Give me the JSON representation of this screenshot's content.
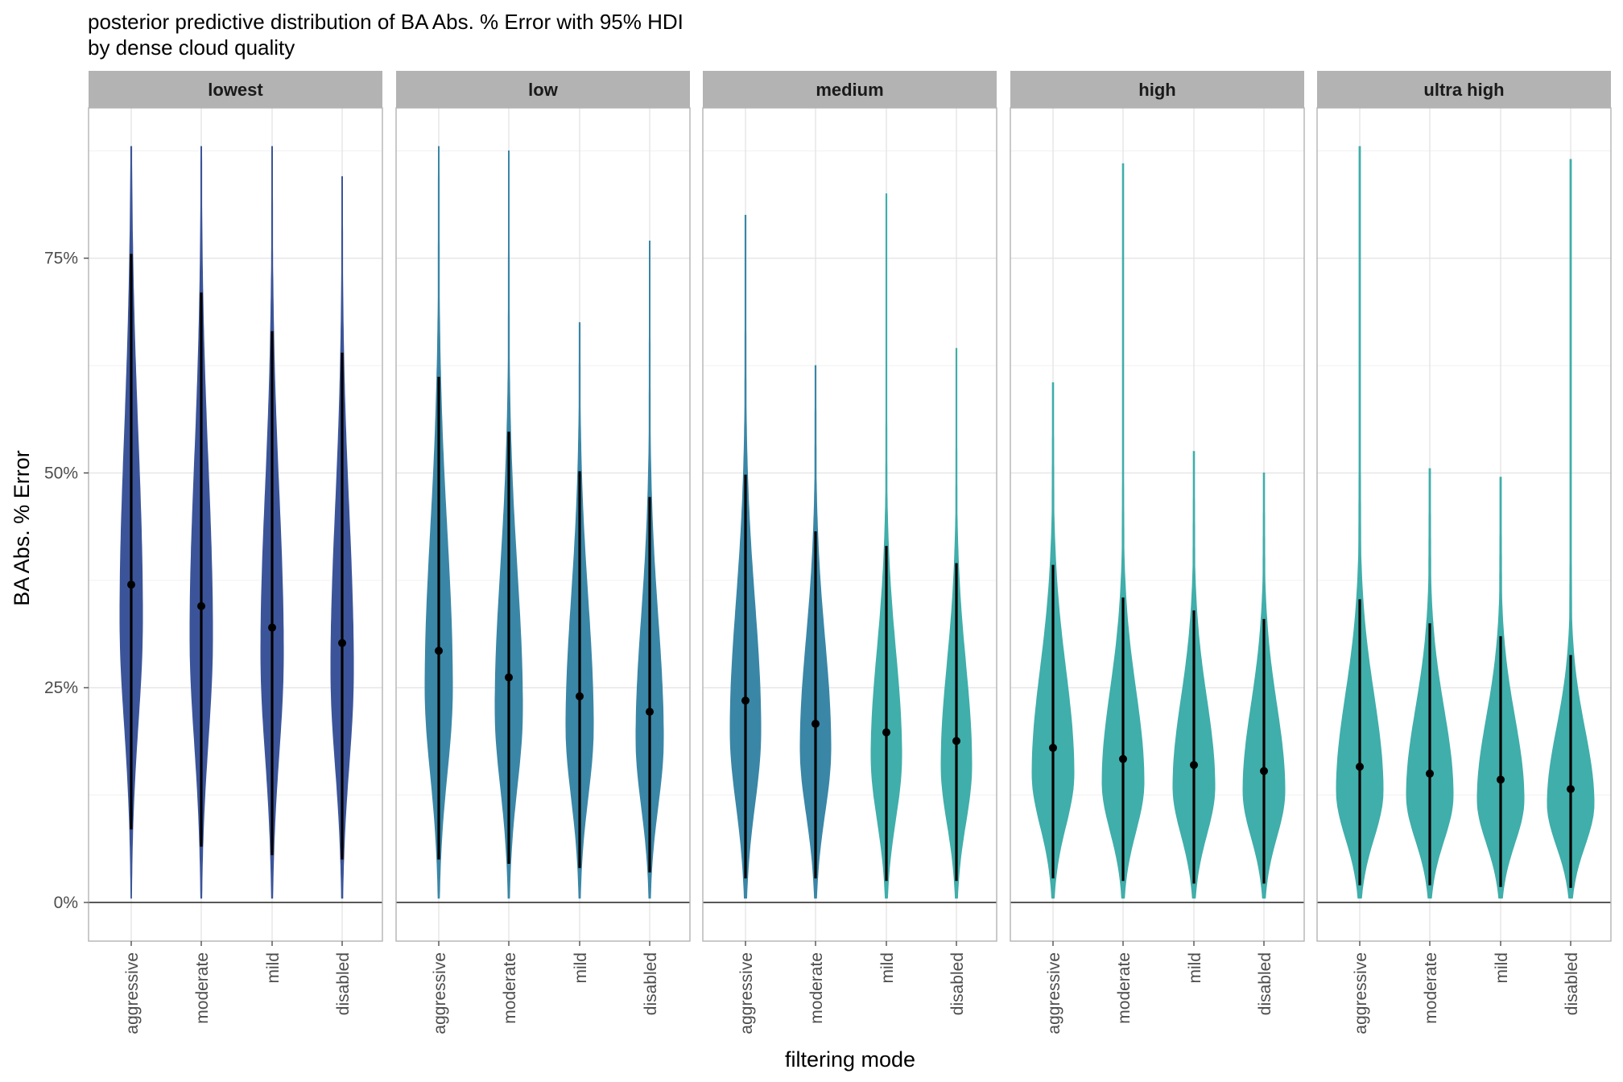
{
  "chart_data": {
    "type": "violin",
    "title": "posterior predictive distribution of BA Abs. % Error with 95% HDI",
    "subtitle": "by dense cloud quality",
    "xlabel": "filtering mode",
    "ylabel": "BA Abs. % Error",
    "ylim": [
      -0.045,
      0.925
    ],
    "y_ticks": [
      0,
      0.25,
      0.5,
      0.75
    ],
    "y_tick_labels": [
      "0%",
      "25%",
      "50%",
      "75%"
    ],
    "categories": [
      "aggressive",
      "moderate",
      "mild",
      "disabled"
    ],
    "hline": 0,
    "grid": true,
    "facets": [
      {
        "name": "lowest",
        "points": [
          {
            "category": "aggressive",
            "median": 0.37,
            "hdi": [
              0.085,
              0.755
            ],
            "min": 0.005,
            "max": 0.88,
            "mode": 0.33,
            "color": "#3b5499"
          },
          {
            "category": "moderate",
            "median": 0.345,
            "hdi": [
              0.065,
              0.71
            ],
            "min": 0.005,
            "max": 0.88,
            "mode": 0.31,
            "color": "#3b5499"
          },
          {
            "category": "mild",
            "median": 0.32,
            "hdi": [
              0.055,
              0.665
            ],
            "min": 0.005,
            "max": 0.88,
            "mode": 0.29,
            "color": "#3b5499"
          },
          {
            "category": "disabled",
            "median": 0.302,
            "hdi": [
              0.05,
              0.64
            ],
            "min": 0.005,
            "max": 0.845,
            "mode": 0.27,
            "color": "#3b5499"
          }
        ]
      },
      {
        "name": "low",
        "points": [
          {
            "category": "aggressive",
            "median": 0.293,
            "hdi": [
              0.05,
              0.612
            ],
            "min": 0.005,
            "max": 0.88,
            "mode": 0.25,
            "color": "#3a86a6"
          },
          {
            "category": "moderate",
            "median": 0.262,
            "hdi": [
              0.045,
              0.548
            ],
            "min": 0.005,
            "max": 0.875,
            "mode": 0.225,
            "color": "#3a86a6"
          },
          {
            "category": "mild",
            "median": 0.24,
            "hdi": [
              0.04,
              0.502
            ],
            "min": 0.005,
            "max": 0.675,
            "mode": 0.205,
            "color": "#3a86a6"
          },
          {
            "category": "disabled",
            "median": 0.222,
            "hdi": [
              0.035,
              0.472
            ],
            "min": 0.005,
            "max": 0.77,
            "mode": 0.19,
            "color": "#3a86a6"
          }
        ]
      },
      {
        "name": "medium",
        "points": [
          {
            "category": "aggressive",
            "median": 0.235,
            "hdi": [
              0.028,
              0.498
            ],
            "min": 0.005,
            "max": 0.8,
            "mode": 0.2,
            "color": "#3a86a6"
          },
          {
            "category": "moderate",
            "median": 0.208,
            "hdi": [
              0.028,
              0.432
            ],
            "min": 0.005,
            "max": 0.625,
            "mode": 0.18,
            "color": "#3a86a6"
          },
          {
            "category": "mild",
            "median": 0.198,
            "hdi": [
              0.025,
              0.415
            ],
            "min": 0.005,
            "max": 0.825,
            "mode": 0.17,
            "color": "#40aeaa"
          },
          {
            "category": "disabled",
            "median": 0.188,
            "hdi": [
              0.025,
              0.395
            ],
            "min": 0.005,
            "max": 0.645,
            "mode": 0.16,
            "color": "#40aeaa"
          }
        ]
      },
      {
        "name": "high",
        "points": [
          {
            "category": "aggressive",
            "median": 0.18,
            "hdi": [
              0.028,
              0.393
            ],
            "min": 0.005,
            "max": 0.605,
            "mode": 0.15,
            "color": "#40aeaa"
          },
          {
            "category": "moderate",
            "median": 0.167,
            "hdi": [
              0.025,
              0.355
            ],
            "min": 0.005,
            "max": 0.86,
            "mode": 0.14,
            "color": "#40aeaa"
          },
          {
            "category": "mild",
            "median": 0.16,
            "hdi": [
              0.022,
              0.34
            ],
            "min": 0.005,
            "max": 0.525,
            "mode": 0.135,
            "color": "#40aeaa"
          },
          {
            "category": "disabled",
            "median": 0.153,
            "hdi": [
              0.022,
              0.33
            ],
            "min": 0.005,
            "max": 0.5,
            "mode": 0.13,
            "color": "#40aeaa"
          }
        ]
      },
      {
        "name": "ultra high",
        "points": [
          {
            "category": "aggressive",
            "median": 0.158,
            "hdi": [
              0.02,
              0.353
            ],
            "min": 0.005,
            "max": 0.88,
            "mode": 0.13,
            "color": "#40aeaa"
          },
          {
            "category": "moderate",
            "median": 0.15,
            "hdi": [
              0.02,
              0.325
            ],
            "min": 0.005,
            "max": 0.505,
            "mode": 0.125,
            "color": "#40aeaa"
          },
          {
            "category": "mild",
            "median": 0.143,
            "hdi": [
              0.018,
              0.31
            ],
            "min": 0.005,
            "max": 0.495,
            "mode": 0.12,
            "color": "#40aeaa"
          },
          {
            "category": "disabled",
            "median": 0.132,
            "hdi": [
              0.017,
              0.288
            ],
            "min": 0.005,
            "max": 0.865,
            "mode": 0.115,
            "color": "#40aeaa"
          }
        ]
      }
    ]
  }
}
